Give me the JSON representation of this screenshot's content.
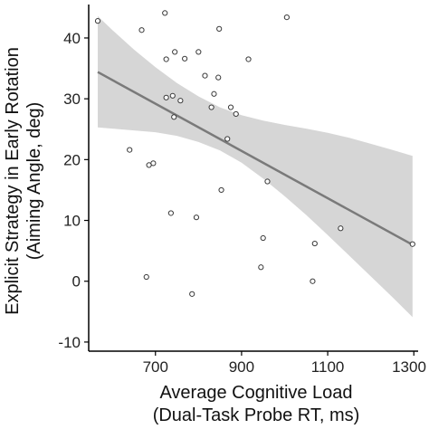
{
  "chart_data": {
    "type": "scatter",
    "title": "",
    "xlabel_line1": "Average Cognitive Load",
    "xlabel_line2": "(Dual-Task Probe RT, ms)",
    "ylabel_line1": "Explicit Strategy in Early Rotation",
    "ylabel_line2": "(Aiming Angle, deg)",
    "xlim": [
      545,
      1310
    ],
    "ylim": [
      -11.5,
      45.5
    ],
    "x_ticks": [
      700,
      900,
      1100,
      1300
    ],
    "y_ticks": [
      -10,
      0,
      10,
      20,
      30,
      40
    ],
    "grid": false,
    "points": [
      {
        "x": 566,
        "y": 42.8
      },
      {
        "x": 668,
        "y": 41.3
      },
      {
        "x": 722,
        "y": 44.1
      },
      {
        "x": 725,
        "y": 36.5
      },
      {
        "x": 745,
        "y": 37.7
      },
      {
        "x": 768,
        "y": 36.6
      },
      {
        "x": 800,
        "y": 37.7
      },
      {
        "x": 848,
        "y": 41.5
      },
      {
        "x": 916,
        "y": 36.5
      },
      {
        "x": 1005,
        "y": 43.4
      },
      {
        "x": 815,
        "y": 33.8
      },
      {
        "x": 846,
        "y": 33.5
      },
      {
        "x": 725,
        "y": 30.2
      },
      {
        "x": 740,
        "y": 30.5
      },
      {
        "x": 758,
        "y": 29.7
      },
      {
        "x": 836,
        "y": 30.8
      },
      {
        "x": 830,
        "y": 28.6
      },
      {
        "x": 875,
        "y": 28.6
      },
      {
        "x": 887,
        "y": 27.5
      },
      {
        "x": 743,
        "y": 27.0
      },
      {
        "x": 867,
        "y": 23.4
      },
      {
        "x": 640,
        "y": 21.6
      },
      {
        "x": 685,
        "y": 19.1
      },
      {
        "x": 695,
        "y": 19.4
      },
      {
        "x": 960,
        "y": 16.4
      },
      {
        "x": 853,
        "y": 15.0
      },
      {
        "x": 736,
        "y": 11.2
      },
      {
        "x": 795,
        "y": 10.5
      },
      {
        "x": 1130,
        "y": 8.7
      },
      {
        "x": 950,
        "y": 7.1
      },
      {
        "x": 1070,
        "y": 6.2
      },
      {
        "x": 1297,
        "y": 6.1
      },
      {
        "x": 945,
        "y": 2.3
      },
      {
        "x": 679,
        "y": 0.7
      },
      {
        "x": 1065,
        "y": 0.0
      },
      {
        "x": 785,
        "y": -2.1
      }
    ],
    "fit_line": {
      "x": [
        566,
        1297
      ],
      "y": [
        34.4,
        6.0
      ]
    },
    "confidence_band": {
      "x": [
        566,
        600,
        650,
        700,
        750,
        800,
        850,
        900,
        950,
        1000,
        1050,
        1100,
        1150,
        1200,
        1250,
        1297
      ],
      "upper": [
        43.6,
        41.3,
        38.1,
        35.2,
        32.6,
        30.4,
        28.6,
        27.3,
        26.4,
        25.7,
        25.1,
        24.4,
        23.6,
        22.6,
        21.6,
        20.6
      ],
      "lower": [
        25.3,
        25.1,
        24.8,
        24.5,
        23.9,
        22.9,
        21.5,
        19.5,
        16.9,
        14.0,
        10.9,
        7.6,
        4.2,
        0.8,
        -2.6,
        -5.9
      ]
    },
    "colors": {
      "band": "#d6d6d6",
      "line": "#7a7a7a",
      "point_stroke": "#3a3a3a",
      "axis": "#000000"
    }
  }
}
